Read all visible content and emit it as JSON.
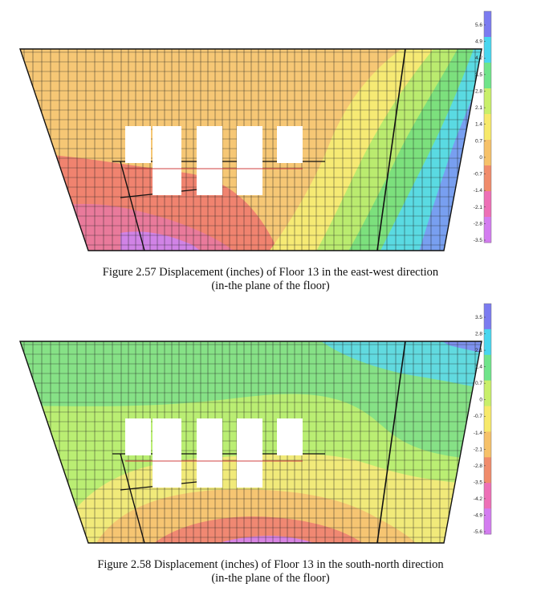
{
  "figures": [
    {
      "id": "fig1",
      "caption_line1": "Figure 2.57 Displacement (inches) of Floor 13 in the east-west direction",
      "caption_line2": "(in-the plane of the floor)",
      "legend": {
        "ticks": [
          "5.6",
          "4.9",
          "4.2",
          "3.5",
          "2.8",
          "2.1",
          "1.4",
          "0.7",
          "0",
          "-0.7",
          "-1.4",
          "-2.1",
          "-2.8",
          "-3.5"
        ],
        "colors": [
          "#7b7bf0",
          "#48d6ef",
          "#6fe48a",
          "#c8ef6a",
          "#f7e96a",
          "#f6c169",
          "#f08b6b",
          "#ed6fb6",
          "#d37cf0"
        ]
      },
      "contour_colors": {
        "orange": "#f6c46e",
        "red": "#ef7f6f",
        "pink": "#e8799d",
        "magenta": "#cf84ea",
        "yellow": "#f5ec74",
        "lime": "#b6eb6f",
        "green": "#78df7d",
        "cyan": "#58d9e8",
        "blue": "#7a9cf0"
      }
    },
    {
      "id": "fig2",
      "caption_line1": "Figure 2.58 Displacement (inches) of Floor 13 in the south-north direction",
      "caption_line2": "(in-the plane of the floor)",
      "legend": {
        "ticks": [
          "3.5",
          "2.8",
          "2.1",
          "1.4",
          "0.7",
          "0",
          "-0.7",
          "-1.4",
          "-2.1",
          "-2.8",
          "-3.5",
          "-4.2",
          "-4.9",
          "-5.6"
        ],
        "colors": [
          "#7b7bf0",
          "#48d6ef",
          "#6fe48a",
          "#c8ef6a",
          "#f7e96a",
          "#f6c169",
          "#f08b6b",
          "#ed6fb6",
          "#d37cf0"
        ]
      },
      "contour_colors": {
        "green": "#7fdf80",
        "lime": "#bdee72",
        "yellow": "#f3e97a",
        "orange": "#f6c372",
        "red": "#ef8572",
        "magenta": "#d684e8",
        "cyan": "#5fd9e4",
        "blue": "#7f8ff0"
      }
    }
  ]
}
